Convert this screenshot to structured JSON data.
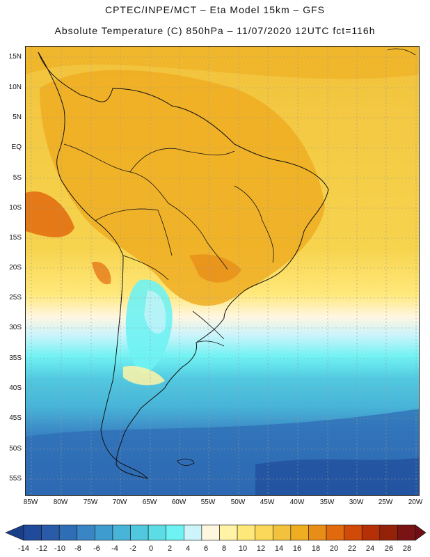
{
  "header": {
    "line1": "CPTEC/INPE/MCT –  Eta Model 15km – GFS",
    "line2": "Absolute Temperature (C) 850hPa – 11/07/2020 12UTC fct=116h"
  },
  "axes": {
    "lat_labels": [
      "15N",
      "10N",
      "5N",
      "EQ",
      "5S",
      "10S",
      "15S",
      "20S",
      "25S",
      "30S",
      "35S",
      "40S",
      "45S",
      "50S",
      "55S"
    ],
    "lon_labels": [
      "85W",
      "80W",
      "75W",
      "70W",
      "65W",
      "60W",
      "55W",
      "50W",
      "45W",
      "40W",
      "35W",
      "30W",
      "25W",
      "20W"
    ]
  },
  "legend": {
    "labels": [
      "-14",
      "-12",
      "-10",
      "-8",
      "-6",
      "-4",
      "-2",
      "0",
      "2",
      "4",
      "6",
      "8",
      "10",
      "12",
      "14",
      "16",
      "18",
      "20",
      "22",
      "24",
      "26",
      "28"
    ],
    "colors": [
      "#1f4b9a",
      "#2a5ba8",
      "#2f6eb5",
      "#3a85c4",
      "#3e9ccf",
      "#48b4d8",
      "#52c8df",
      "#5cdde6",
      "#6ff2f3",
      "#cdf4fb",
      "#fff6e0",
      "#fff3a6",
      "#ffe87a",
      "#fbd75a",
      "#f2c23c",
      "#efad22",
      "#e98d19",
      "#e26a0e",
      "#d14a08",
      "#b53006",
      "#942208",
      "#7a1414"
    ]
  },
  "map": {
    "variable": "Absolute Temperature",
    "unit": "C",
    "level": "850hPa",
    "date": "11/07/2020",
    "run": "12UTC",
    "forecast": "fct=116h"
  }
}
